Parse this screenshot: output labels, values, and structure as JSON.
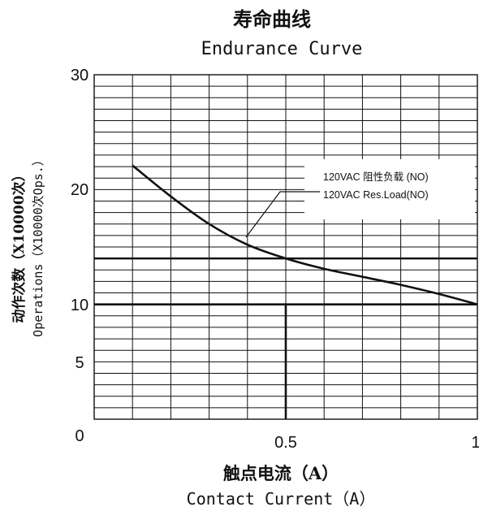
{
  "chart_data": {
    "type": "line",
    "title": "寿命曲线",
    "subtitle": "Endurance Curve",
    "xlabel": "触点电流（A）",
    "xlabel_en": "Contact Current（A）",
    "ylabel": "动作次数（X10000次）",
    "ylabel_en": "Operations（X10000次Ops.）",
    "x_ticks": [
      "0",
      "0.5",
      "1"
    ],
    "y_ticks": [
      "30",
      "20",
      "10",
      "5"
    ],
    "xlim": [
      0,
      1
    ],
    "ylim": [
      0,
      30
    ],
    "grid": true,
    "legend_position": "top-right",
    "series": [
      {
        "name": "120VAC 阻性负载 (NO)",
        "name_en": "120VAC Res.Load(NO)",
        "x": [
          0.1,
          0.2,
          0.3,
          0.4,
          0.5,
          0.6,
          0.7,
          0.8,
          0.9,
          1.0
        ],
        "y": [
          22.1,
          19.4,
          17.0,
          15.2,
          14.0,
          13.1,
          12.4,
          11.7,
          10.9,
          10.0
        ]
      }
    ],
    "reference_lines_y": [
      14,
      10
    ],
    "reference_line_x": 0.5,
    "line_color": "#111111",
    "grid_color": "#111111",
    "background": "#ffffff"
  }
}
